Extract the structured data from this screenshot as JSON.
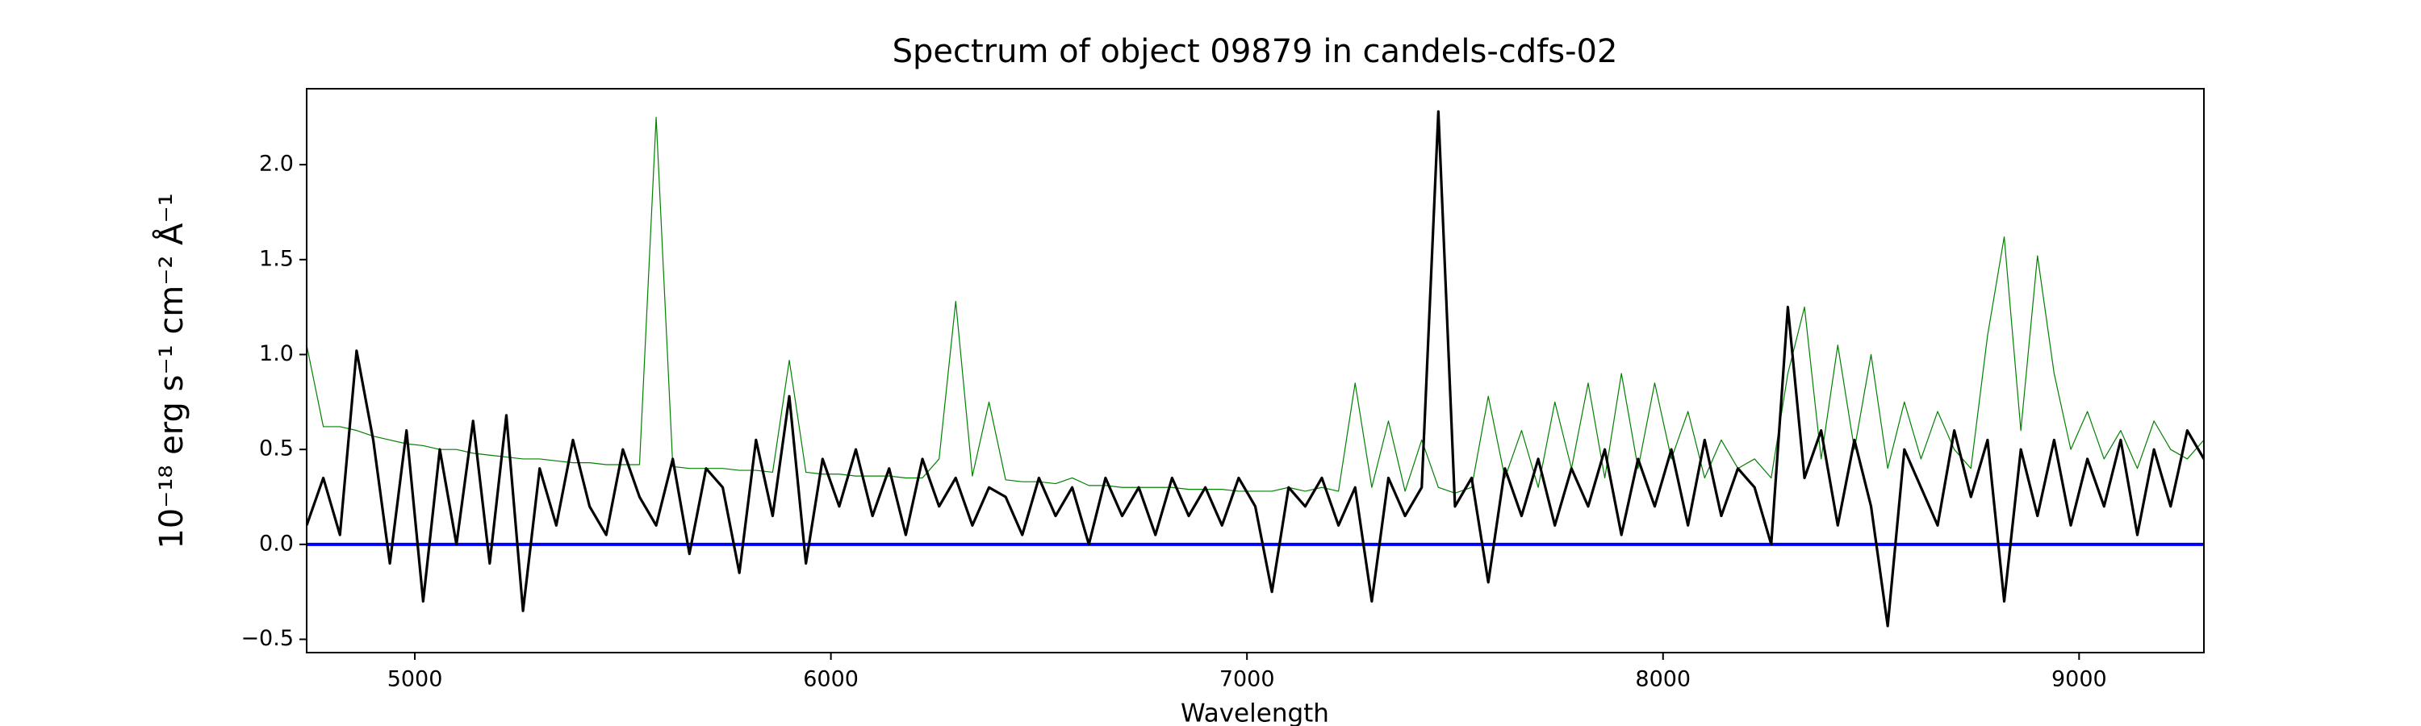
{
  "chart_data": {
    "type": "line",
    "title": "Spectrum of object 09879 in candels-cdfs-02",
    "x_label": "Wavelength",
    "y_label": "10⁻¹⁸ erg s⁻¹ cm⁻² Å⁻¹",
    "xlim": [
      4740,
      9300
    ],
    "ylim": [
      -0.57,
      2.4
    ],
    "xticks": [
      5000,
      6000,
      7000,
      8000,
      9000
    ],
    "yticks": [
      {
        "value": -0.5,
        "label": "−0.5"
      },
      {
        "value": 0,
        "label": "0.0"
      },
      {
        "value": 0.5,
        "label": "0.5"
      },
      {
        "value": 1,
        "label": "1.0"
      },
      {
        "value": 1.5,
        "label": "1.5"
      },
      {
        "value": 2,
        "label": "2.0"
      }
    ],
    "grid": false,
    "hlines": [
      {
        "y": 0,
        "color": "#0000ff"
      }
    ],
    "x": [
      4740,
      4780,
      4820,
      4860,
      4900,
      4940,
      4980,
      5020,
      5060,
      5100,
      5140,
      5180,
      5220,
      5260,
      5300,
      5340,
      5380,
      5420,
      5460,
      5500,
      5540,
      5580,
      5620,
      5660,
      5700,
      5740,
      5780,
      5820,
      5860,
      5900,
      5940,
      5980,
      6020,
      6060,
      6100,
      6140,
      6180,
      6220,
      6260,
      6300,
      6340,
      6380,
      6420,
      6460,
      6500,
      6540,
      6580,
      6620,
      6660,
      6700,
      6740,
      6780,
      6820,
      6860,
      6900,
      6940,
      6980,
      7020,
      7060,
      7100,
      7140,
      7180,
      7220,
      7260,
      7300,
      7340,
      7380,
      7420,
      7460,
      7500,
      7540,
      7580,
      7620,
      7660,
      7700,
      7740,
      7780,
      7820,
      7860,
      7900,
      7940,
      7980,
      8020,
      8060,
      8100,
      8140,
      8180,
      8220,
      8260,
      8300,
      8340,
      8380,
      8420,
      8460,
      8500,
      8540,
      8580,
      8620,
      8660,
      8700,
      8740,
      8780,
      8820,
      8860,
      8900,
      8940,
      8980,
      9020,
      9060,
      9100,
      9140,
      9180,
      9220,
      9260,
      9300
    ],
    "series": [
      {
        "color": "#008000",
        "width": 1.2,
        "values": [
          1.05,
          0.62,
          0.62,
          0.6,
          0.57,
          0.55,
          0.53,
          0.52,
          0.5,
          0.5,
          0.48,
          0.47,
          0.46,
          0.45,
          0.45,
          0.44,
          0.43,
          0.43,
          0.42,
          0.42,
          0.42,
          2.25,
          0.41,
          0.4,
          0.4,
          0.4,
          0.39,
          0.39,
          0.38,
          0.97,
          0.38,
          0.37,
          0.37,
          0.36,
          0.36,
          0.36,
          0.35,
          0.35,
          0.45,
          1.28,
          0.36,
          0.75,
          0.34,
          0.33,
          0.33,
          0.32,
          0.35,
          0.31,
          0.31,
          0.3,
          0.3,
          0.3,
          0.3,
          0.29,
          0.29,
          0.29,
          0.28,
          0.28,
          0.28,
          0.3,
          0.28,
          0.3,
          0.28,
          0.85,
          0.3,
          0.65,
          0.28,
          0.55,
          0.3,
          0.27,
          0.3,
          0.78,
          0.35,
          0.6,
          0.3,
          0.75,
          0.4,
          0.85,
          0.35,
          0.9,
          0.4,
          0.85,
          0.45,
          0.7,
          0.35,
          0.55,
          0.4,
          0.45,
          0.35,
          0.9,
          1.25,
          0.45,
          1.05,
          0.5,
          1.0,
          0.4,
          0.75,
          0.45,
          0.7,
          0.5,
          0.4,
          1.1,
          1.62,
          0.6,
          1.52,
          0.9,
          0.5,
          0.7,
          0.45,
          0.6,
          0.4,
          0.65,
          0.5,
          0.45,
          0.55
        ]
      },
      {
        "color": "#000000",
        "width": 3.2,
        "values": [
          0.1,
          0.35,
          0.05,
          1.02,
          0.55,
          -0.1,
          0.6,
          -0.3,
          0.5,
          0.0,
          0.65,
          -0.1,
          0.68,
          -0.35,
          0.4,
          0.1,
          0.55,
          0.2,
          0.05,
          0.5,
          0.25,
          0.1,
          0.45,
          -0.05,
          0.4,
          0.3,
          -0.15,
          0.55,
          0.15,
          0.78,
          -0.1,
          0.45,
          0.2,
          0.5,
          0.15,
          0.4,
          0.05,
          0.45,
          0.2,
          0.35,
          0.1,
          0.3,
          0.25,
          0.05,
          0.35,
          0.15,
          0.3,
          0.0,
          0.35,
          0.15,
          0.3,
          0.05,
          0.35,
          0.15,
          0.3,
          0.1,
          0.35,
          0.2,
          -0.25,
          0.3,
          0.2,
          0.35,
          0.1,
          0.3,
          -0.3,
          0.35,
          0.15,
          0.3,
          2.28,
          0.2,
          0.35,
          -0.2,
          0.4,
          0.15,
          0.45,
          0.1,
          0.4,
          0.2,
          0.5,
          0.05,
          0.45,
          0.2,
          0.5,
          0.1,
          0.55,
          0.15,
          0.4,
          0.3,
          0.0,
          1.25,
          0.35,
          0.6,
          0.1,
          0.55,
          0.2,
          -0.43,
          0.5,
          0.3,
          0.1,
          0.6,
          0.25,
          0.55,
          -0.3,
          0.5,
          0.15,
          0.55,
          0.1,
          0.45,
          0.2,
          0.55,
          0.05,
          0.5,
          0.2,
          0.6,
          0.45
        ]
      }
    ]
  }
}
